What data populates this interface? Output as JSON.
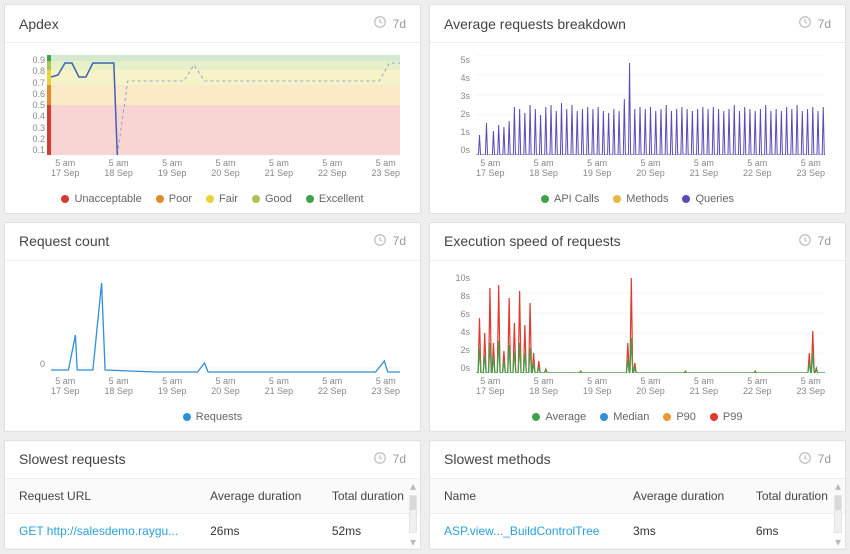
{
  "colors": {
    "card_bg": "#ffffff",
    "page_bg": "#eeeeee",
    "grid": "#eeeeee",
    "axis_text": "#888888",
    "link": "#2aa1d8"
  },
  "timerange_label": "7d",
  "x_ticks": [
    {
      "top": "5 am",
      "bottom": "17 Sep"
    },
    {
      "top": "5 am",
      "bottom": "18 Sep"
    },
    {
      "top": "5 am",
      "bottom": "19 Sep"
    },
    {
      "top": "5 am",
      "bottom": "20 Sep"
    },
    {
      "top": "5 am",
      "bottom": "21 Sep"
    },
    {
      "top": "5 am",
      "bottom": "22 Sep"
    },
    {
      "top": "5 am",
      "bottom": "23 Sep"
    }
  ],
  "apdex": {
    "title": "Apdex",
    "y_ticks": [
      "0.9",
      "0.8",
      "0.7",
      "0.6",
      "0.5",
      "0.4",
      "0.3",
      "0.2",
      "0.1"
    ],
    "bands": [
      {
        "from": 0,
        "to": 0.5,
        "color": "#f8d5d2"
      },
      {
        "from": 0.5,
        "to": 0.7,
        "color": "#fbe9c7"
      },
      {
        "from": 0.7,
        "to": 0.85,
        "color": "#f6f3c9"
      },
      {
        "from": 0.85,
        "to": 0.94,
        "color": "#e6f0c9"
      },
      {
        "from": 0.94,
        "to": 1.0,
        "color": "#d3ead0"
      }
    ],
    "grade_bar": [
      {
        "from": 0.94,
        "to": 1.0,
        "color": "#3fa24a"
      },
      {
        "from": 0.85,
        "to": 0.94,
        "color": "#a7c64f"
      },
      {
        "from": 0.7,
        "to": 0.85,
        "color": "#e9d33a"
      },
      {
        "from": 0.5,
        "to": 0.7,
        "color": "#e28a2b"
      },
      {
        "from": 0.0,
        "to": 0.5,
        "color": "#d23b2e"
      }
    ],
    "line_color": "#7b90c4",
    "line_dash": "3 3",
    "solid_color": "#3f61b3",
    "points": [
      {
        "x": 0.0,
        "y": 0.78
      },
      {
        "x": 0.02,
        "y": 0.8
      },
      {
        "x": 0.04,
        "y": 0.92
      },
      {
        "x": 0.06,
        "y": 0.92
      },
      {
        "x": 0.08,
        "y": 0.78
      },
      {
        "x": 0.1,
        "y": 0.78
      },
      {
        "x": 0.12,
        "y": 0.92
      },
      {
        "x": 0.135,
        "y": 0.92
      },
      {
        "x": 0.15,
        "y": 0.92
      },
      {
        "x": 0.16,
        "y": 0.92
      },
      {
        "x": 0.18,
        "y": 0.92
      },
      {
        "x": 0.19,
        "y": 0.0
      },
      {
        "x": 0.22,
        "y": 0.74
      },
      {
        "x": 0.25,
        "y": 0.74
      },
      {
        "x": 0.28,
        "y": 0.74
      },
      {
        "x": 0.3,
        "y": 0.74
      },
      {
        "x": 0.34,
        "y": 0.74
      },
      {
        "x": 0.38,
        "y": 0.74
      },
      {
        "x": 0.41,
        "y": 0.9
      },
      {
        "x": 0.44,
        "y": 0.74
      },
      {
        "x": 0.5,
        "y": 0.74
      },
      {
        "x": 0.56,
        "y": 0.74
      },
      {
        "x": 0.62,
        "y": 0.74
      },
      {
        "x": 0.7,
        "y": 0.74
      },
      {
        "x": 0.8,
        "y": 0.74
      },
      {
        "x": 0.9,
        "y": 0.74
      },
      {
        "x": 0.94,
        "y": 0.74
      },
      {
        "x": 0.97,
        "y": 0.92
      },
      {
        "x": 1.0,
        "y": 0.92
      }
    ],
    "solid_until_x": 0.19,
    "legend": [
      {
        "label": "Unacceptable",
        "color": "#d23b2e"
      },
      {
        "label": "Poor",
        "color": "#e28a2b"
      },
      {
        "label": "Fair",
        "color": "#e9d33a"
      },
      {
        "label": "Good",
        "color": "#a7c64f"
      },
      {
        "label": "Excellent",
        "color": "#3fa24a"
      }
    ]
  },
  "avg_requests": {
    "title": "Average requests breakdown",
    "y_ticks": [
      "5s",
      "4s",
      "3s",
      "2s",
      "1s",
      "0s"
    ],
    "y_max": 5,
    "series": {
      "queries": {
        "color": "#5b4bb7"
      },
      "api": {
        "color": "#3fa24a"
      },
      "methods": {
        "color": "#e6b83d"
      }
    },
    "spikes": [
      {
        "x": 0.01,
        "h": 1.0
      },
      {
        "x": 0.03,
        "h": 1.6
      },
      {
        "x": 0.05,
        "h": 1.2
      },
      {
        "x": 0.065,
        "h": 1.5
      },
      {
        "x": 0.08,
        "h": 1.4
      },
      {
        "x": 0.095,
        "h": 1.7
      },
      {
        "x": 0.11,
        "h": 2.4
      },
      {
        "x": 0.125,
        "h": 2.3
      },
      {
        "x": 0.14,
        "h": 2.1
      },
      {
        "x": 0.155,
        "h": 2.5
      },
      {
        "x": 0.17,
        "h": 2.3
      },
      {
        "x": 0.185,
        "h": 2.0
      },
      {
        "x": 0.2,
        "h": 2.4
      },
      {
        "x": 0.215,
        "h": 2.5
      },
      {
        "x": 0.23,
        "h": 2.2
      },
      {
        "x": 0.245,
        "h": 2.6
      },
      {
        "x": 0.26,
        "h": 2.3
      },
      {
        "x": 0.275,
        "h": 2.5
      },
      {
        "x": 0.29,
        "h": 2.2
      },
      {
        "x": 0.305,
        "h": 2.3
      },
      {
        "x": 0.32,
        "h": 2.4
      },
      {
        "x": 0.335,
        "h": 2.3
      },
      {
        "x": 0.35,
        "h": 2.4
      },
      {
        "x": 0.365,
        "h": 2.2
      },
      {
        "x": 0.38,
        "h": 2.1
      },
      {
        "x": 0.395,
        "h": 2.3
      },
      {
        "x": 0.41,
        "h": 2.2
      },
      {
        "x": 0.425,
        "h": 2.8
      },
      {
        "x": 0.44,
        "h": 4.6
      },
      {
        "x": 0.455,
        "h": 2.3
      },
      {
        "x": 0.47,
        "h": 2.4
      },
      {
        "x": 0.485,
        "h": 2.3
      },
      {
        "x": 0.5,
        "h": 2.4
      },
      {
        "x": 0.515,
        "h": 2.2
      },
      {
        "x": 0.53,
        "h": 2.3
      },
      {
        "x": 0.545,
        "h": 2.5
      },
      {
        "x": 0.56,
        "h": 2.2
      },
      {
        "x": 0.575,
        "h": 2.3
      },
      {
        "x": 0.59,
        "h": 2.4
      },
      {
        "x": 0.605,
        "h": 2.3
      },
      {
        "x": 0.62,
        "h": 2.2
      },
      {
        "x": 0.635,
        "h": 2.3
      },
      {
        "x": 0.65,
        "h": 2.4
      },
      {
        "x": 0.665,
        "h": 2.3
      },
      {
        "x": 0.68,
        "h": 2.4
      },
      {
        "x": 0.695,
        "h": 2.3
      },
      {
        "x": 0.71,
        "h": 2.2
      },
      {
        "x": 0.725,
        "h": 2.3
      },
      {
        "x": 0.74,
        "h": 2.5
      },
      {
        "x": 0.755,
        "h": 2.2
      },
      {
        "x": 0.77,
        "h": 2.4
      },
      {
        "x": 0.785,
        "h": 2.3
      },
      {
        "x": 0.8,
        "h": 2.2
      },
      {
        "x": 0.815,
        "h": 2.3
      },
      {
        "x": 0.83,
        "h": 2.5
      },
      {
        "x": 0.845,
        "h": 2.2
      },
      {
        "x": 0.86,
        "h": 2.3
      },
      {
        "x": 0.875,
        "h": 2.2
      },
      {
        "x": 0.89,
        "h": 2.4
      },
      {
        "x": 0.905,
        "h": 2.3
      },
      {
        "x": 0.92,
        "h": 2.5
      },
      {
        "x": 0.935,
        "h": 2.2
      },
      {
        "x": 0.95,
        "h": 2.3
      },
      {
        "x": 0.965,
        "h": 2.4
      },
      {
        "x": 0.98,
        "h": 2.2
      },
      {
        "x": 0.995,
        "h": 2.4
      }
    ],
    "legend": [
      {
        "label": "API Calls",
        "color": "#3fa24a"
      },
      {
        "label": "Methods",
        "color": "#e6b83d"
      },
      {
        "label": "Queries",
        "color": "#5b4bb7"
      }
    ]
  },
  "request_count": {
    "title": "Request count",
    "y_ticks": [
      "0"
    ],
    "y_max": 100,
    "color": "#2f8fd8",
    "points": [
      {
        "x": 0.0,
        "y": 3
      },
      {
        "x": 0.05,
        "y": 3
      },
      {
        "x": 0.07,
        "y": 38
      },
      {
        "x": 0.075,
        "y": 3
      },
      {
        "x": 0.12,
        "y": 3
      },
      {
        "x": 0.145,
        "y": 90
      },
      {
        "x": 0.155,
        "y": 3
      },
      {
        "x": 0.3,
        "y": 1
      },
      {
        "x": 0.42,
        "y": 1
      },
      {
        "x": 0.44,
        "y": 10
      },
      {
        "x": 0.45,
        "y": 1
      },
      {
        "x": 0.7,
        "y": 1
      },
      {
        "x": 0.93,
        "y": 1
      },
      {
        "x": 0.955,
        "y": 12
      },
      {
        "x": 0.965,
        "y": 1
      },
      {
        "x": 1.0,
        "y": 1
      }
    ],
    "legend": [
      {
        "label": "Requests",
        "color": "#2f8fd8"
      }
    ]
  },
  "exec_speed": {
    "title": "Execution speed of requests",
    "y_ticks": [
      "10s",
      "8s",
      "6s",
      "4s",
      "2s",
      "0s"
    ],
    "y_max": 10,
    "series": [
      {
        "name": "P99",
        "color": "#e03a2e"
      },
      {
        "name": "P90",
        "color": "#ec9a2f"
      },
      {
        "name": "Average",
        "color": "#3fa24a"
      },
      {
        "name": "Median",
        "color": "#2f8fd8"
      }
    ],
    "p99_spikes": [
      {
        "x": 0.01,
        "h": 5.5
      },
      {
        "x": 0.025,
        "h": 4.0
      },
      {
        "x": 0.04,
        "h": 8.5
      },
      {
        "x": 0.05,
        "h": 3.0
      },
      {
        "x": 0.065,
        "h": 8.8
      },
      {
        "x": 0.08,
        "h": 2.2
      },
      {
        "x": 0.095,
        "h": 7.5
      },
      {
        "x": 0.11,
        "h": 5.0
      },
      {
        "x": 0.125,
        "h": 8.2
      },
      {
        "x": 0.14,
        "h": 4.8
      },
      {
        "x": 0.155,
        "h": 7.0
      },
      {
        "x": 0.165,
        "h": 2.0
      },
      {
        "x": 0.18,
        "h": 1.2
      },
      {
        "x": 0.2,
        "h": 0.4
      },
      {
        "x": 0.3,
        "h": 0.2
      },
      {
        "x": 0.435,
        "h": 3.0
      },
      {
        "x": 0.445,
        "h": 9.5
      },
      {
        "x": 0.455,
        "h": 1.0
      },
      {
        "x": 0.6,
        "h": 0.2
      },
      {
        "x": 0.8,
        "h": 0.2
      },
      {
        "x": 0.955,
        "h": 2.0
      },
      {
        "x": 0.965,
        "h": 4.2
      },
      {
        "x": 0.975,
        "h": 0.5
      }
    ],
    "avg_spikes": [
      {
        "x": 0.01,
        "h": 2.5
      },
      {
        "x": 0.025,
        "h": 1.8
      },
      {
        "x": 0.04,
        "h": 3.0
      },
      {
        "x": 0.05,
        "h": 1.6
      },
      {
        "x": 0.065,
        "h": 3.2
      },
      {
        "x": 0.08,
        "h": 1.2
      },
      {
        "x": 0.095,
        "h": 2.8
      },
      {
        "x": 0.11,
        "h": 2.2
      },
      {
        "x": 0.125,
        "h": 3.0
      },
      {
        "x": 0.14,
        "h": 2.0
      },
      {
        "x": 0.155,
        "h": 2.5
      },
      {
        "x": 0.165,
        "h": 1.0
      },
      {
        "x": 0.18,
        "h": 0.6
      },
      {
        "x": 0.2,
        "h": 0.3
      },
      {
        "x": 0.3,
        "h": 0.15
      },
      {
        "x": 0.435,
        "h": 1.3
      },
      {
        "x": 0.445,
        "h": 3.5
      },
      {
        "x": 0.455,
        "h": 0.5
      },
      {
        "x": 0.6,
        "h": 0.15
      },
      {
        "x": 0.8,
        "h": 0.15
      },
      {
        "x": 0.955,
        "h": 1.0
      },
      {
        "x": 0.965,
        "h": 2.0
      },
      {
        "x": 0.975,
        "h": 0.3
      }
    ],
    "legend": [
      {
        "label": "Average",
        "color": "#3fa24a"
      },
      {
        "label": "Median",
        "color": "#2f8fd8"
      },
      {
        "label": "P90",
        "color": "#ec9a2f"
      },
      {
        "label": "P99",
        "color": "#e03a2e"
      }
    ]
  },
  "slowest_requests": {
    "title": "Slowest requests",
    "columns": [
      "Request URL",
      "Average duration",
      "Total duration"
    ],
    "rows": [
      {
        "url": "GET http://salesdemo.raygu...",
        "avg": "26ms",
        "total": "52ms"
      }
    ]
  },
  "slowest_methods": {
    "title": "Slowest methods",
    "columns": [
      "Name",
      "Average duration",
      "Total duration"
    ],
    "rows": [
      {
        "name": "ASP.view..._BuildControlTree",
        "avg": "3ms",
        "total": "6ms"
      }
    ]
  }
}
